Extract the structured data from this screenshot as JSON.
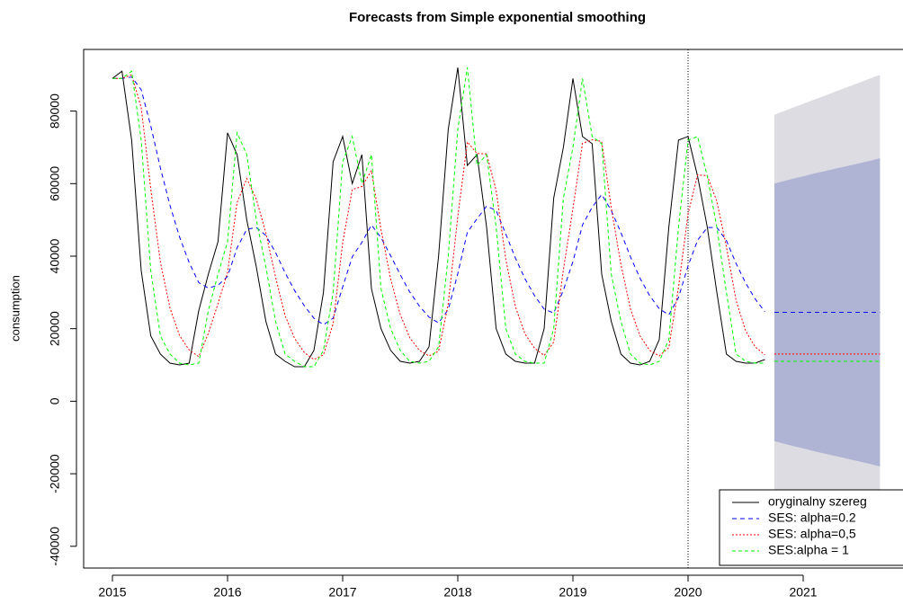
{
  "chart_data": {
    "type": "line",
    "title": "Forecasts from Simple exponential smoothing",
    "y_label": "consumption",
    "xlim": [
      2014.75,
      2021.867
    ],
    "ylim": [
      -46000,
      97000
    ],
    "xticks": [
      2015,
      2016,
      2017,
      2018,
      2019,
      2020,
      2021
    ],
    "yticks": [
      -40000,
      -20000,
      0,
      20000,
      40000,
      60000,
      80000
    ],
    "vline": 2020,
    "legend": "bottom-right",
    "x": [
      2015,
      2015.083,
      2015.167,
      2015.25,
      2015.333,
      2015.417,
      2015.5,
      2015.583,
      2015.667,
      2015.75,
      2015.833,
      2015.917,
      2016,
      2016.083,
      2016.167,
      2016.25,
      2016.333,
      2016.417,
      2016.5,
      2016.583,
      2016.667,
      2016.75,
      2016.833,
      2016.917,
      2017,
      2017.083,
      2017.167,
      2017.25,
      2017.333,
      2017.417,
      2017.5,
      2017.583,
      2017.667,
      2017.75,
      2017.833,
      2017.917,
      2018,
      2018.083,
      2018.167,
      2018.25,
      2018.333,
      2018.417,
      2018.5,
      2018.583,
      2018.667,
      2018.75,
      2018.833,
      2018.917,
      2019,
      2019.083,
      2019.167,
      2019.25,
      2019.333,
      2019.417,
      2019.5,
      2019.583,
      2019.667,
      2019.75,
      2019.833,
      2019.917,
      2020,
      2020.083,
      2020.167,
      2020.25,
      2020.333,
      2020.417,
      2020.5,
      2020.583,
      2020.667
    ],
    "series": [
      {
        "name": "oryginalny szereg",
        "color": "#000000",
        "dash": "none",
        "values": [
          89000,
          91000,
          72000,
          36000,
          18000,
          13000,
          10500,
          10000,
          10500,
          25000,
          35000,
          44000,
          74000,
          68000,
          50000,
          37000,
          22000,
          13000,
          11000,
          9500,
          9500,
          14000,
          30000,
          66000,
          73000,
          60000,
          68000,
          31000,
          20000,
          14000,
          11000,
          10500,
          11000,
          15000,
          40000,
          75000,
          92000,
          65000,
          68000,
          48000,
          20000,
          13000,
          11000,
          10500,
          10500,
          20000,
          56000,
          70000,
          89000,
          73000,
          71000,
          35000,
          22000,
          13000,
          10500,
          10000,
          11000,
          17000,
          48000,
          72000,
          73000,
          62000,
          48000,
          30000,
          13000,
          11000,
          10500,
          10500,
          11500
        ]
      },
      {
        "name": "SES: alpha=0.2",
        "color": "#0000ff",
        "dash": "5,4",
        "forecast": 24500,
        "values": [
          89000,
          89000,
          89400,
          85900,
          75900,
          64300,
          54000,
          45300,
          38200,
          32700,
          31200,
          32000,
          34400,
          42300,
          47400,
          47900,
          45700,
          41000,
          35400,
          30500,
          26300,
          22900,
          21100,
          22900,
          31500,
          39800,
          43800,
          48600,
          45100,
          40100,
          34900,
          30100,
          26200,
          23200,
          21600,
          25300,
          35200,
          46600,
          50300,
          53800,
          52600,
          46100,
          39500,
          33800,
          29100,
          25400,
          24300,
          30600,
          38500,
          48600,
          53500,
          57000,
          52600,
          46500,
          39800,
          33900,
          29100,
          25500,
          23800,
          28600,
          37300,
          44400,
          47900,
          47900,
          44300,
          38000,
          32600,
          28200,
          24700
        ]
      },
      {
        "name": "SES: alpha=0,5",
        "color": "#ff0000",
        "dash": "2,2",
        "forecast": 13000,
        "values": [
          89000,
          89000,
          90000,
          81000,
          58500,
          38300,
          25700,
          18100,
          14100,
          12300,
          18700,
          26900,
          35500,
          54800,
          61400,
          55700,
          46400,
          34200,
          23600,
          17300,
          13400,
          11500,
          12800,
          21400,
          43700,
          58400,
          59200,
          63600,
          47300,
          33700,
          23900,
          17500,
          14000,
          12500,
          13800,
          26900,
          51000,
          71500,
          68300,
          68200,
          58100,
          39100,
          26100,
          18600,
          14600,
          12600,
          16300,
          36200,
          53100,
          71100,
          72100,
          71600,
          53300,
          37700,
          25400,
          18000,
          14000,
          12500,
          14800,
          31400,
          51700,
          62400,
          62200,
          55100,
          42600,
          27800,
          19400,
          15000,
          12800
        ]
      },
      {
        "name": "SES:alpha =  1",
        "color": "#00ff00",
        "dash": "4,3",
        "forecast": 11000,
        "values": [
          89000,
          89000,
          91000,
          72000,
          36000,
          18000,
          13000,
          10500,
          10000,
          10500,
          25000,
          35000,
          44000,
          74000,
          68000,
          50000,
          37000,
          22000,
          13000,
          11000,
          9500,
          9500,
          14000,
          30000,
          66000,
          73000,
          60000,
          68000,
          31000,
          20000,
          14000,
          11000,
          10500,
          11000,
          15000,
          40000,
          75000,
          92000,
          65000,
          68000,
          48000,
          20000,
          13000,
          11000,
          10500,
          10500,
          20000,
          56000,
          70000,
          89000,
          73000,
          71000,
          35000,
          22000,
          13000,
          10500,
          10000,
          11000,
          17000,
          48000,
          72000,
          73000,
          62000,
          48000,
          30000,
          13000,
          11000,
          10500,
          10500
        ]
      }
    ],
    "forecast": {
      "x": [
        2020.75,
        2020.833,
        2020.917,
        2021,
        2021.083,
        2021.167,
        2021.25,
        2021.333,
        2021.417,
        2021.5,
        2021.583,
        2021.667
      ],
      "color80": "#b0b4d4",
      "color95": "#dcdce2",
      "hi95": [
        79000,
        80000,
        81000,
        82000,
        83000,
        84000,
        85000,
        86000,
        87000,
        88000,
        89000,
        90000
      ],
      "lo95": [
        -30000,
        -31000,
        -32000,
        -33000,
        -34000,
        -35000,
        -36000,
        -37000,
        -38000,
        -39000,
        -40000,
        -41000
      ],
      "hi80": [
        60000,
        60700,
        61400,
        62000,
        62700,
        63300,
        63900,
        64500,
        65100,
        65700,
        66300,
        67000
      ],
      "lo80": [
        -11000,
        -11700,
        -12400,
        -13000,
        -13700,
        -14300,
        -14900,
        -15500,
        -16100,
        -16700,
        -17300,
        -18000
      ]
    }
  }
}
